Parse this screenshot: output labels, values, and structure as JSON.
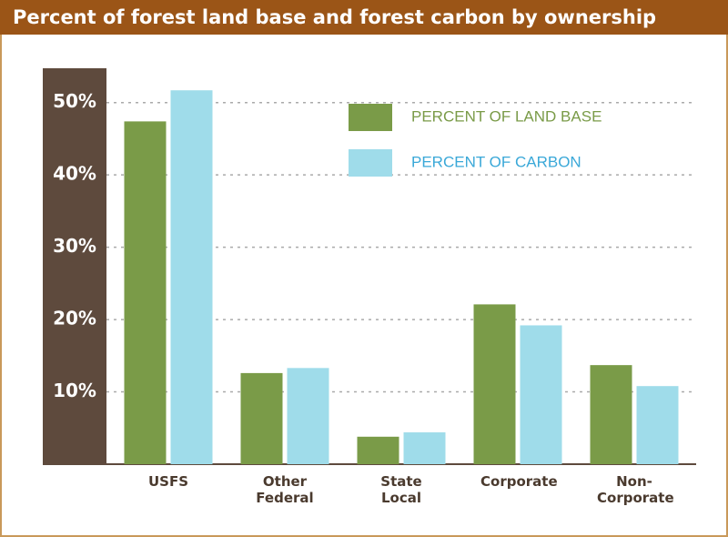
{
  "chart_data": {
    "type": "bar",
    "title": "Percent of forest land base and forest carbon by ownership",
    "categories": [
      "USFS",
      "Other Federal",
      "State Local",
      "Corporate",
      "Non-Corporate"
    ],
    "series": [
      {
        "name": "PERCENT OF LAND BASE",
        "color": "#7a9b48",
        "values": [
          47.4,
          12.6,
          3.8,
          22.1,
          13.7
        ]
      },
      {
        "name": "PERCENT OF CARBON",
        "color": "#9fdcea",
        "values": [
          51.7,
          13.3,
          4.4,
          19.2,
          10.8
        ]
      }
    ],
    "ylim": [
      0,
      55
    ],
    "yticks": [
      {
        "value": 10,
        "label": "10%"
      },
      {
        "value": 20,
        "label": "20%"
      },
      {
        "value": 30,
        "label": "30%"
      },
      {
        "value": 40,
        "label": "40%"
      },
      {
        "value": 50,
        "label": "50%"
      }
    ],
    "grid": true,
    "legend": "top-right"
  }
}
